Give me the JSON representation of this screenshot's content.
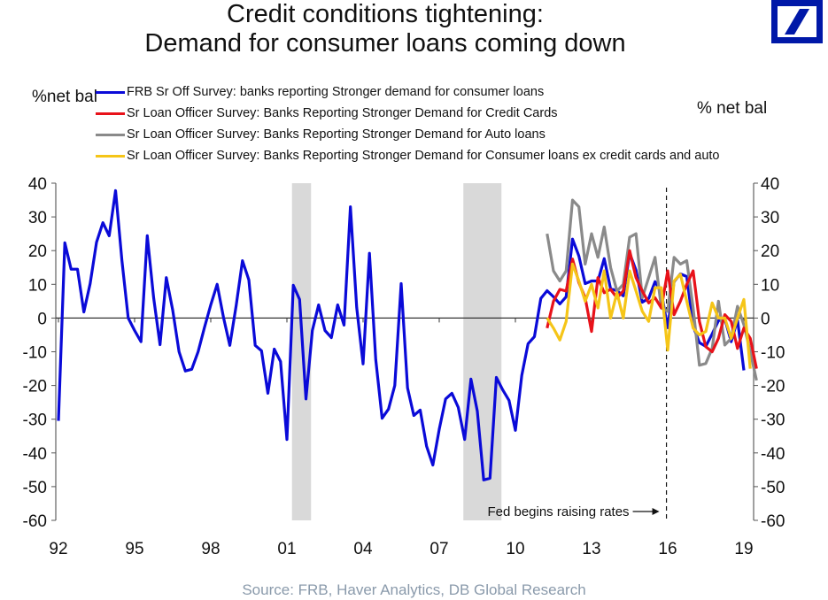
{
  "header": {
    "title_line1": "Credit conditions tightening:",
    "title_line2": "Demand for consumer loans coming down",
    "logo": "deutsche-bank-logo"
  },
  "source": "Source: FRB, Haver Analytics, DB Global Research",
  "chart_data": {
    "type": "line",
    "title": "Credit conditions tightening: Demand for consumer loans coming down",
    "ylabel_left": "%net bal",
    "ylabel_right": "% net bal",
    "xlabel": "",
    "ylim": [
      -60,
      40
    ],
    "yticks": [
      40,
      30,
      20,
      10,
      0,
      -10,
      -20,
      -30,
      -40,
      -50,
      -60
    ],
    "ytick_labels": [
      "40",
      "30",
      "20",
      "10",
      "0",
      "-10",
      "-20",
      "-30",
      "-40",
      "-50",
      "-60"
    ],
    "xlim": [
      1992.0,
      2019.25
    ],
    "xticks": [
      1992,
      1995,
      1998,
      2001,
      2004,
      2007,
      2010,
      2013,
      2016,
      2019
    ],
    "xtick_labels": [
      "92",
      "95",
      "98",
      "01",
      "04",
      "07",
      "10",
      "13",
      "16",
      "19"
    ],
    "frequency": "quarterly",
    "grid": false,
    "legend_position": "top-left",
    "recessions": [
      {
        "start": 2001.2,
        "end": 2001.95
      },
      {
        "start": 2007.95,
        "end": 2009.45
      }
    ],
    "annotations": [
      {
        "text": "Fed begins raising rates",
        "x": 2015.95,
        "type": "vertical-dashed-line",
        "arrow": "→"
      }
    ],
    "series": [
      {
        "name": "FRB Sr Off Survey: banks reporting Stronger demand for consumer loans",
        "color": "#0a0ad8",
        "start": 1992.0,
        "values": [
          -30.5,
          22.3,
          14.5,
          14.5,
          1.8,
          10.2,
          22.5,
          28.3,
          24.4,
          37.8,
          17,
          0,
          -3.7,
          -7,
          24.4,
          6,
          -7.9,
          12,
          2.4,
          -10,
          -15.7,
          -15.2,
          -10,
          -2.9,
          3.9,
          10,
          0.3,
          -8.1,
          3.7,
          17,
          11.3,
          -8.1,
          -9.7,
          -22.3,
          -9.2,
          -12.9,
          -36,
          9.7,
          5.5,
          -24,
          -3.7,
          3.9,
          -3.7,
          -5.8,
          3.9,
          -2.1,
          33,
          3.1,
          -13.6,
          19.2,
          -12.3,
          -29.7,
          -27,
          -20,
          10.2,
          -20.7,
          -28.9,
          -27.3,
          -38,
          -43.6,
          -33,
          -24,
          -22.3,
          -26.5,
          -36,
          -18.1,
          -27.6,
          -48,
          -47.5,
          -17.6,
          -21.3,
          -24.4,
          -33.3,
          -17,
          -7.6,
          -5.5,
          5.8,
          8.1,
          6.3,
          4.2,
          6.3,
          23.4,
          18.4,
          10.2,
          11,
          11,
          17.6,
          8.7,
          8.1,
          6.6,
          19.2,
          14.2,
          4.7,
          5.8,
          10.8,
          7.6,
          -2.9,
          10.8,
          13.1,
          12.3,
          -2.4,
          -7.3,
          -8.4,
          -4.7,
          -0.8,
          -0.3,
          -7,
          -0.5,
          -15.5
        ]
      },
      {
        "name": "Sr Loan Officer Survey: Banks Reporting Stronger Demand for Credit Cards",
        "color": "#e8121a",
        "start": 2011.25,
        "values": [
          -3,
          5,
          8.5,
          8,
          17.5,
          10.5,
          6,
          -4,
          12,
          7.5,
          8.5,
          6,
          8,
          20,
          12,
          8,
          4.5,
          6,
          3,
          14,
          1,
          5,
          10,
          14,
          -1,
          -8.5,
          -10,
          -6,
          1,
          -1,
          -9,
          -3,
          -6,
          -15
        ]
      },
      {
        "name": "Sr Loan Officer Survey: Banks Reporting Stronger Demand for Auto loans",
        "color": "#8a8a8a",
        "start": 2011.25,
        "values": [
          25,
          14,
          11,
          14,
          35,
          33,
          16,
          25,
          18,
          27,
          15,
          8,
          10,
          24,
          25,
          6,
          12,
          18,
          3,
          2,
          18,
          16,
          17,
          3,
          -14,
          -13.5,
          -9,
          5,
          -8,
          -6,
          3.5,
          -2,
          -10,
          -18.5
        ]
      },
      {
        "name": "Sr Loan Officer Survey: Banks Reporting Stronger Demand for Consumer loans ex credit cards and auto",
        "color": "#f5c518",
        "start": 2011.25,
        "values": [
          0,
          -3,
          -6.5,
          -1,
          16,
          11,
          5,
          10,
          3,
          14,
          0,
          7.5,
          0,
          14,
          8,
          2,
          -1,
          9,
          9,
          -9.5,
          11,
          13,
          5,
          -3,
          -5,
          -4,
          4.5,
          0,
          0,
          -6,
          0,
          5.5,
          -15
        ]
      }
    ]
  }
}
